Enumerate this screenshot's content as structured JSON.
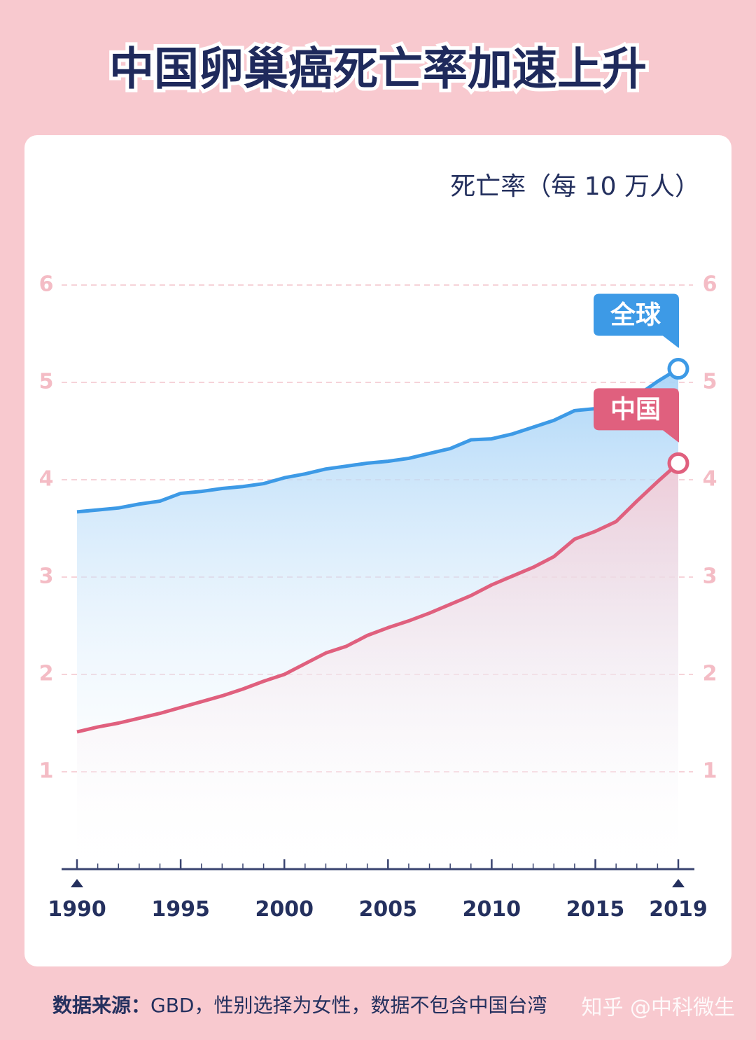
{
  "chart_data": {
    "type": "line",
    "title": "中国卵巢癌死亡率加速上升",
    "y_label": "死亡率（每 10 万人）",
    "x": [
      1990,
      1991,
      1992,
      1993,
      1994,
      1995,
      1996,
      1997,
      1998,
      1999,
      2000,
      2001,
      2002,
      2003,
      2004,
      2005,
      2006,
      2007,
      2008,
      2009,
      2010,
      2011,
      2012,
      2013,
      2014,
      2015,
      2016,
      2017,
      2018,
      2019
    ],
    "series": [
      {
        "name": "全球",
        "color": "#3d9ae6",
        "values": [
          3.67,
          3.69,
          3.71,
          3.75,
          3.78,
          3.86,
          3.88,
          3.91,
          3.93,
          3.96,
          4.02,
          4.06,
          4.11,
          4.14,
          4.17,
          4.19,
          4.22,
          4.27,
          4.32,
          4.41,
          4.42,
          4.47,
          4.54,
          4.61,
          4.71,
          4.73,
          4.77,
          4.86,
          5.01,
          5.14
        ]
      },
      {
        "name": "中国",
        "color": "#e0607e",
        "values": [
          1.41,
          1.46,
          1.5,
          1.55,
          1.6,
          1.66,
          1.72,
          1.78,
          1.85,
          1.93,
          2.0,
          2.11,
          2.22,
          2.29,
          2.4,
          2.48,
          2.55,
          2.63,
          2.72,
          2.81,
          2.92,
          3.01,
          3.1,
          3.21,
          3.39,
          3.47,
          3.57,
          3.78,
          3.98,
          4.17
        ]
      }
    ],
    "xlim": [
      1990,
      2019
    ],
    "xticks": [
      1990,
      1995,
      2000,
      2005,
      2010,
      2015,
      2019
    ],
    "ylim": [
      0,
      6
    ],
    "yticks": [
      1,
      2,
      3,
      4,
      5,
      6
    ],
    "grid": true,
    "source_label": "数据来源：",
    "source": "GBD，性别选择为女性，数据不包含中国台湾",
    "watermark": "知乎 @中科微生"
  }
}
